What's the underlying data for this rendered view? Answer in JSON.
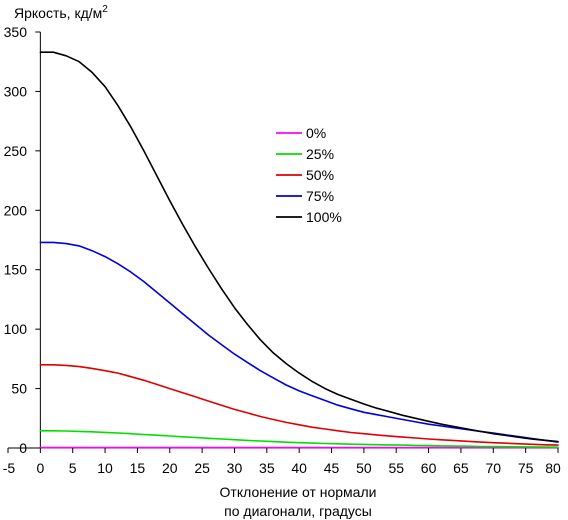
{
  "chart_data": {
    "type": "line",
    "title": "",
    "ylabel": "Яркость, кд/м",
    "ylabel_sup": "2",
    "xlabel_line1": "Отклонение от нормали",
    "xlabel_line2": "по диагонали, градусы",
    "xlim": [
      -5,
      80
    ],
    "ylim": [
      0,
      350
    ],
    "xticks": [
      "-5",
      "0",
      "5",
      "10",
      "15",
      "20",
      "25",
      "30",
      "35",
      "40",
      "45",
      "50",
      "55",
      "60",
      "65",
      "70",
      "75",
      "80"
    ],
    "yticks": [
      "0",
      "50",
      "100",
      "150",
      "200",
      "250",
      "300",
      "350"
    ],
    "grid": false,
    "legend_position": "top-right",
    "x": [
      0,
      2,
      4,
      6,
      8,
      10,
      12,
      14,
      16,
      18,
      20,
      22,
      24,
      26,
      28,
      30,
      32,
      34,
      36,
      38,
      40,
      42,
      44,
      46,
      48,
      50,
      52,
      54,
      56,
      58,
      60,
      62,
      64,
      66,
      68,
      70,
      72,
      74,
      76,
      78,
      80
    ],
    "series": [
      {
        "name": "0%",
        "color": "#ff00ff",
        "values": [
          0.3,
          0.3,
          0.3,
          0.3,
          0.3,
          0.3,
          0.3,
          0.3,
          0.3,
          0.3,
          0.3,
          0.3,
          0.3,
          0.3,
          0.3,
          0.3,
          0.3,
          0.3,
          0.3,
          0.3,
          0.3,
          0.3,
          0.3,
          0.3,
          0.3,
          0.3,
          0.3,
          0.3,
          0.3,
          0.3,
          0.3,
          0.3,
          0.3,
          0.3,
          0.3,
          0.3,
          0.3,
          0.3,
          0.3,
          0.3,
          0.3
        ]
      },
      {
        "name": "25%",
        "color": "#00e000",
        "values": [
          14.5,
          14.5,
          14.3,
          14.0,
          13.6,
          13.1,
          12.6,
          12.0,
          11.4,
          10.8,
          10.1,
          9.4,
          8.8,
          8.2,
          7.6,
          7.0,
          6.4,
          5.9,
          5.4,
          4.9,
          4.5,
          4.1,
          3.8,
          3.5,
          3.2,
          3.0,
          2.8,
          2.6,
          2.4,
          2.2,
          2.0,
          1.8,
          1.6,
          1.5,
          1.3,
          1.2,
          1.1,
          1.0,
          0.9,
          0.8,
          0.7
        ]
      },
      {
        "name": "50%",
        "color": "#e00000",
        "values": [
          70,
          70,
          69.5,
          68.5,
          67,
          65,
          63,
          60,
          57,
          53.5,
          50,
          46.5,
          43,
          39.5,
          36,
          32.5,
          29.5,
          26.5,
          24,
          21.5,
          19.5,
          17.5,
          16,
          14.5,
          13,
          12,
          11,
          10,
          9.2,
          8.4,
          7.6,
          6.9,
          6.2,
          5.6,
          5.0,
          4.5,
          4.0,
          3.5,
          3.1,
          2.7,
          2.4
        ]
      },
      {
        "name": "75%",
        "color": "#0000e0",
        "values": [
          173,
          173,
          172,
          170,
          166,
          161,
          155,
          148,
          140,
          131,
          122,
          113,
          104,
          95,
          87,
          79,
          72,
          65,
          59,
          53,
          48,
          44,
          40,
          36,
          33,
          30,
          28,
          26,
          24,
          22,
          20,
          18.5,
          17,
          15.5,
          14,
          12.5,
          11,
          9.5,
          8,
          6.5,
          5
        ]
      },
      {
        "name": "100%",
        "color": "#000000",
        "values": [
          333,
          333,
          330,
          325,
          316,
          304,
          288,
          270,
          250,
          229,
          208,
          188,
          169,
          151,
          134,
          118,
          104,
          91,
          80,
          71,
          63,
          56,
          50,
          45,
          41,
          37,
          33.5,
          30.5,
          27.5,
          25,
          22.5,
          20,
          18,
          16,
          14,
          12,
          10.5,
          9,
          7.5,
          6.5,
          5.5
        ]
      }
    ]
  }
}
